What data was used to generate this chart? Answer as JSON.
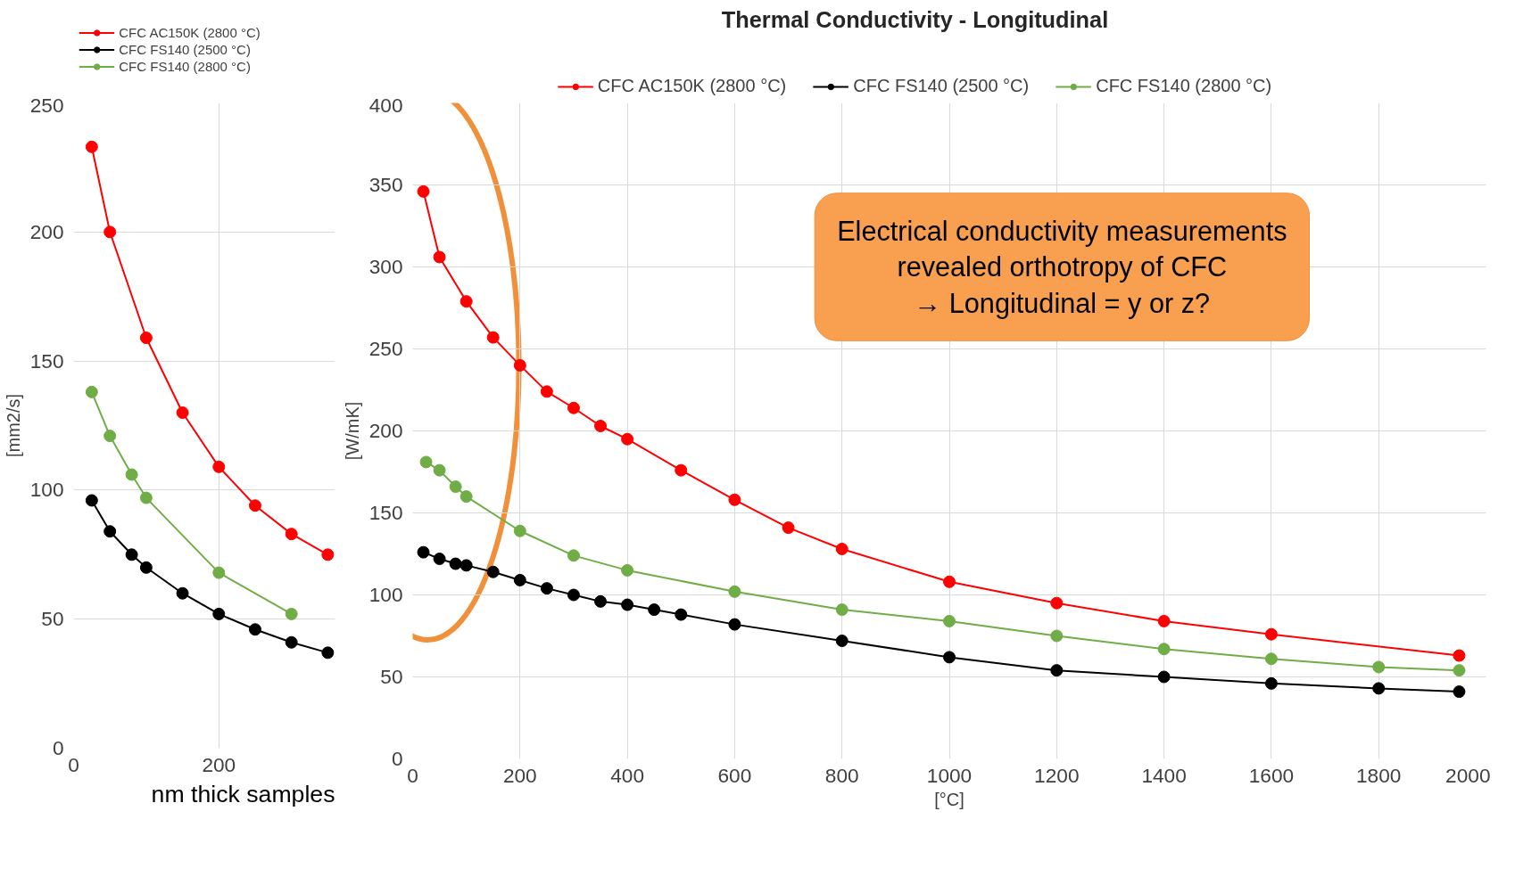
{
  "chart_data": [
    {
      "type": "line",
      "ylabel": "[mm2/s]",
      "xlim": [
        0,
        360
      ],
      "xticks": [
        0,
        200
      ],
      "ylim": [
        0,
        250
      ],
      "yticks": [
        0,
        50,
        100,
        150,
        200,
        250
      ],
      "grid": true,
      "legend": "top",
      "marker": "circle",
      "line_style": "solid",
      "annotations": [
        "nm thick samples"
      ],
      "series": [
        {
          "name": "CFC AC150K (2800 °C)",
          "color": "#ff0000",
          "x": [
            25,
            50,
            100,
            150,
            200,
            250,
            300,
            350
          ],
          "values": [
            233,
            200,
            159,
            130,
            109,
            94,
            83,
            75
          ]
        },
        {
          "name": "CFC FS140 (2500 °C)",
          "color": "#000000",
          "x": [
            25,
            50,
            80,
            100,
            150,
            200,
            250,
            300,
            350
          ],
          "values": [
            96,
            84,
            75,
            70,
            60,
            52,
            46,
            41,
            37
          ]
        },
        {
          "name": "CFC FS140 (2800 °C)",
          "color": "#70ad47",
          "x": [
            25,
            50,
            80,
            100,
            200,
            300
          ],
          "values": [
            138,
            121,
            106,
            97,
            68,
            52
          ]
        }
      ]
    },
    {
      "type": "line",
      "title": "Thermal Conductivity - Longitudinal",
      "xlabel": "[°C]",
      "ylabel": "[W/mK]",
      "xlim": [
        0,
        2000
      ],
      "xticks": [
        0,
        200,
        400,
        600,
        800,
        1000,
        1200,
        1400,
        1600,
        1800,
        2000
      ],
      "ylim": [
        0,
        400
      ],
      "yticks": [
        0,
        50,
        100,
        150,
        200,
        250,
        300,
        350,
        400
      ],
      "grid": true,
      "legend": "top",
      "marker": "circle",
      "line_style": "solid",
      "annotations": [
        "Electrical conductivity measurements\nrevealed orthotropy of CFC\n→ Longitudinal = y or z?"
      ],
      "series": [
        {
          "name": "CFC AC150K (2800 °C)",
          "color": "#ff0000",
          "x": [
            20,
            50,
            100,
            150,
            200,
            250,
            300,
            350,
            400,
            500,
            600,
            700,
            800,
            1000,
            1200,
            1400,
            1600,
            1950
          ],
          "values": [
            346,
            306,
            279,
            257,
            240,
            224,
            214,
            203,
            195,
            176,
            158,
            141,
            128,
            108,
            95,
            84,
            76,
            63
          ]
        },
        {
          "name": "CFC FS140 (2500 °C)",
          "color": "#000000",
          "x": [
            20,
            50,
            80,
            100,
            150,
            200,
            250,
            300,
            350,
            400,
            450,
            500,
            600,
            800,
            1000,
            1200,
            1400,
            1600,
            1800,
            1950
          ],
          "values": [
            126,
            122,
            119,
            118,
            114,
            109,
            104,
            100,
            96,
            94,
            91,
            88,
            82,
            72,
            62,
            54,
            50,
            46,
            43,
            41
          ]
        },
        {
          "name": "CFC FS140 (2800 °C)",
          "color": "#70ad47",
          "x": [
            25,
            50,
            80,
            100,
            200,
            300,
            400,
            600,
            800,
            1000,
            1200,
            1400,
            1600,
            1800,
            1950
          ],
          "values": [
            181,
            176,
            166,
            160,
            139,
            124,
            115,
            102,
            91,
            84,
            75,
            67,
            61,
            56,
            54
          ]
        }
      ]
    }
  ]
}
